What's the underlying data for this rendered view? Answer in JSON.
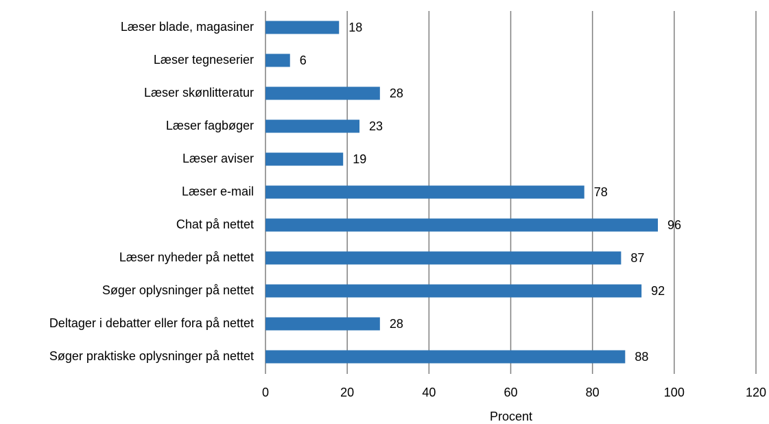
{
  "chart_data": {
    "type": "bar",
    "orientation": "horizontal",
    "categories": [
      "Læser blade, magasiner",
      "Læser tegneserier",
      "Læser skønlitteratur",
      "Læser fagbøger",
      "Læser aviser",
      "Læser e-mail",
      "Chat på nettet",
      "Læser nyheder på nettet",
      "Søger oplysninger på nettet",
      "Deltager i debatter eller fora på nettet",
      "Søger praktiske oplysninger på nettet"
    ],
    "values": [
      18,
      6,
      28,
      23,
      19,
      78,
      96,
      87,
      92,
      28,
      88
    ],
    "color": "#2e75b6",
    "xlabel": "Procent",
    "xlim": [
      0,
      120
    ],
    "xticks": [
      0,
      20,
      40,
      60,
      80,
      100,
      120
    ],
    "grid": true
  }
}
